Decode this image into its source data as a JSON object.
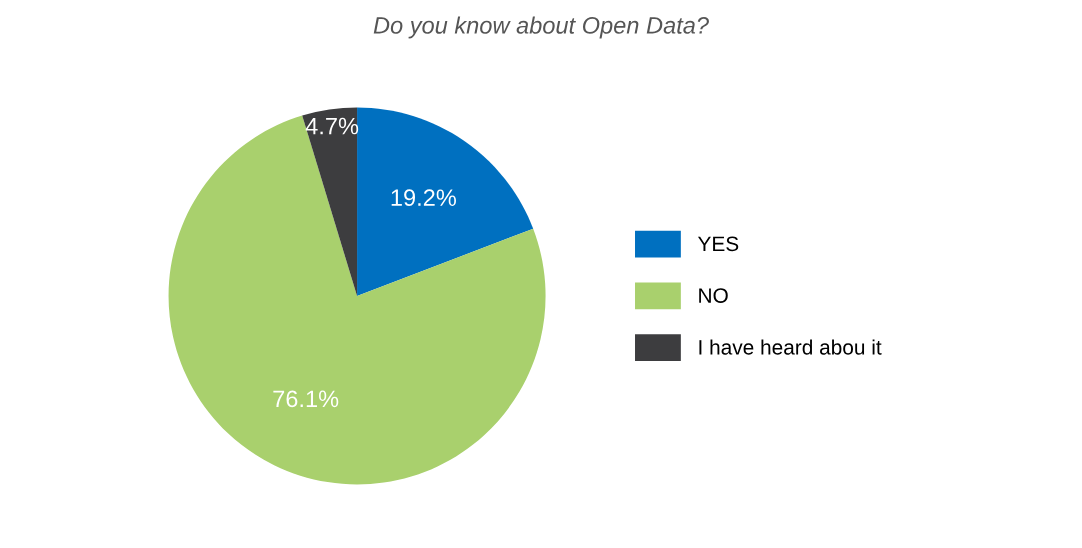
{
  "chart_data": {
    "type": "pie",
    "title": "Do you know about Open Data?",
    "categories": [
      "YES",
      "NO",
      "I have heard abou it"
    ],
    "values": [
      19.2,
      76.1,
      4.7
    ],
    "colors": [
      "#0070c0",
      "#a9d06d",
      "#3d3d3f"
    ],
    "value_labels": [
      "19.2%",
      "76.1%",
      "4.7%"
    ],
    "legend": "right"
  }
}
